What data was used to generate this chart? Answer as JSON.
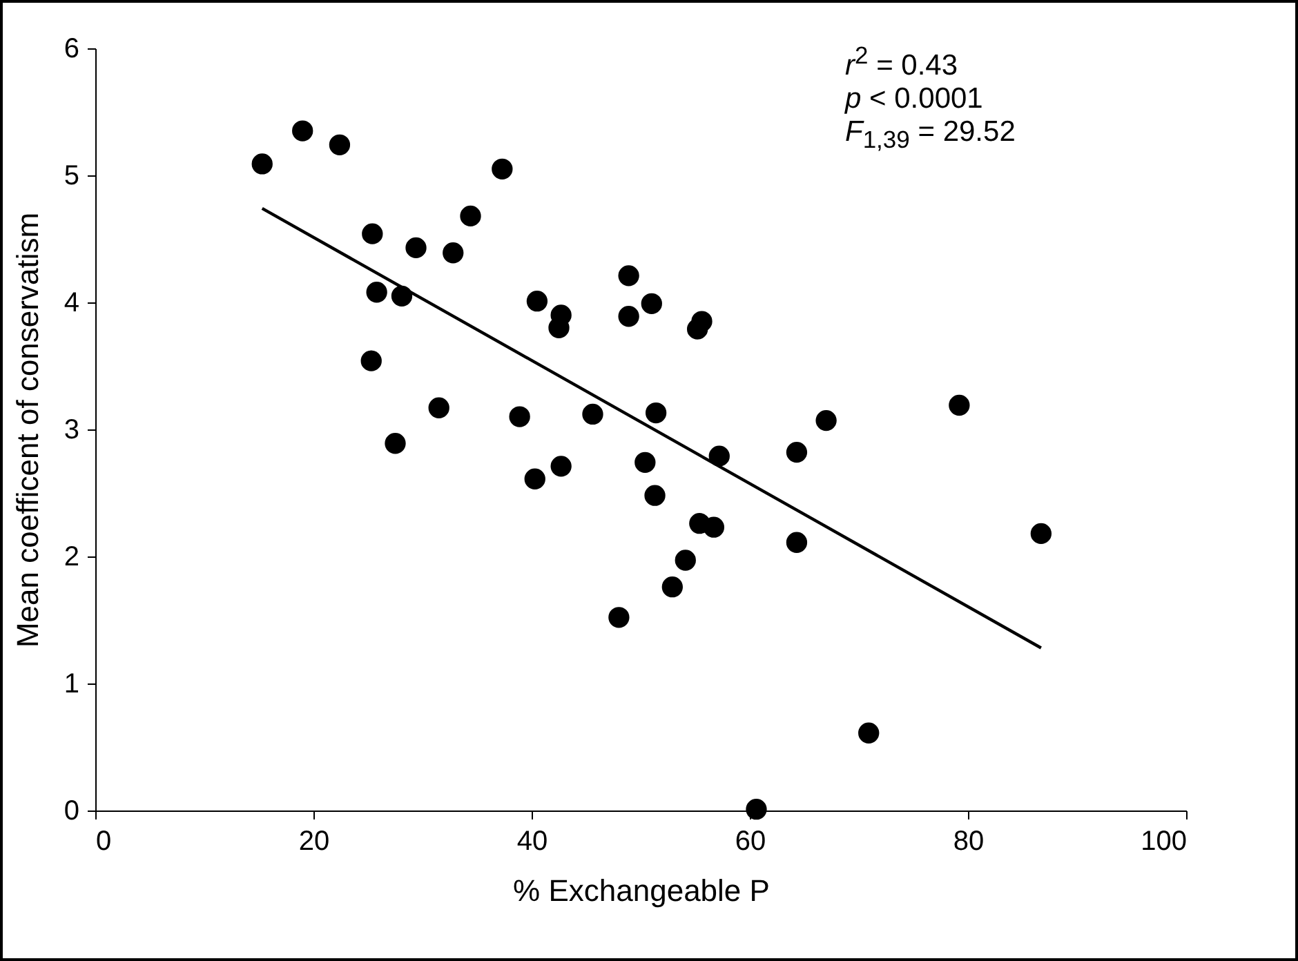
{
  "chart_data": {
    "type": "scatter",
    "xlabel": "% Exchangeable P",
    "ylabel": "Mean coefficent of conservatism",
    "xlim": [
      0,
      100
    ],
    "xticks": [
      0,
      20,
      40,
      60,
      80,
      100
    ],
    "ylim": [
      0,
      6
    ],
    "yticks": [
      0,
      1,
      2,
      3,
      4,
      5,
      6
    ],
    "annotations": [
      "r$^{2}$ = 0.43",
      "p < 0.0001",
      "F$_{1,39}$ = 29.52"
    ],
    "series": [
      {
        "marker": "circle",
        "color": "#000000",
        "x": [
          15.3,
          19.0,
          22.4,
          25.4,
          29.4,
          32.8,
          34.4,
          37.3,
          25.8,
          28.1,
          25.3,
          31.5,
          27.5,
          38.9,
          45.6,
          40.5,
          42.7,
          42.5,
          48.9,
          48.9,
          51.0,
          55.6,
          55.2,
          51.4,
          67.0,
          57.2,
          64.3,
          40.3,
          42.7,
          50.4,
          51.3,
          55.4,
          56.7,
          64.3,
          54.1,
          52.9,
          48.0,
          70.9,
          60.6,
          79.2,
          86.7
        ],
        "values": [
          5.09,
          5.35,
          5.24,
          4.54,
          4.43,
          4.39,
          4.68,
          5.05,
          4.08,
          4.05,
          3.54,
          3.17,
          2.89,
          3.1,
          3.12,
          4.01,
          3.9,
          3.8,
          4.21,
          3.89,
          3.99,
          3.85,
          3.79,
          3.13,
          3.07,
          2.79,
          2.82,
          2.61,
          2.71,
          2.74,
          2.48,
          2.26,
          2.23,
          2.11,
          1.97,
          1.76,
          1.52,
          0.61,
          0.01,
          3.19,
          2.18
        ]
      },
      {
        "type": "line",
        "marker": "none",
        "color": "#000000",
        "x": [
          15.3,
          86.7
        ],
        "values": [
          4.74,
          1.28
        ]
      }
    ]
  }
}
